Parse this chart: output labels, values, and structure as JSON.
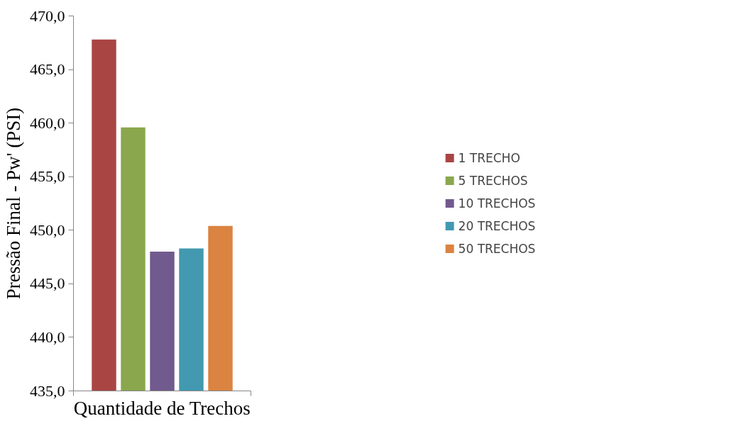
{
  "chart_data": {
    "type": "bar",
    "xlabel": "Quantidade de Trechos",
    "ylabel": "Pressão Final - Pw' (PSI)",
    "categories": [
      null
    ],
    "series": [
      {
        "name": "1 TRECHO",
        "color": "#a94543",
        "values": [
          467.8
        ]
      },
      {
        "name": "5 TRECHOS",
        "color": "#8aa74d",
        "values": [
          459.6
        ]
      },
      {
        "name": "10 TRECHOS",
        "color": "#715a8e",
        "values": [
          448.0
        ]
      },
      {
        "name": "20 TRECHOS",
        "color": "#4299b0",
        "values": [
          448.3
        ]
      },
      {
        "name": "50 TRECHOS",
        "color": "#db8340",
        "values": [
          450.4
        ]
      }
    ],
    "ylim": [
      435,
      470
    ],
    "yticks": [
      {
        "value": 435,
        "label": "435,0"
      },
      {
        "value": 440,
        "label": "440,0"
      },
      {
        "value": 445,
        "label": "445,0"
      },
      {
        "value": 450,
        "label": "450,0"
      },
      {
        "value": 455,
        "label": "455,0"
      },
      {
        "value": 460,
        "label": "460,0"
      },
      {
        "value": 465,
        "label": "465,0"
      },
      {
        "value": 470,
        "label": "470,0"
      }
    ],
    "legend": "right",
    "grid": false
  }
}
